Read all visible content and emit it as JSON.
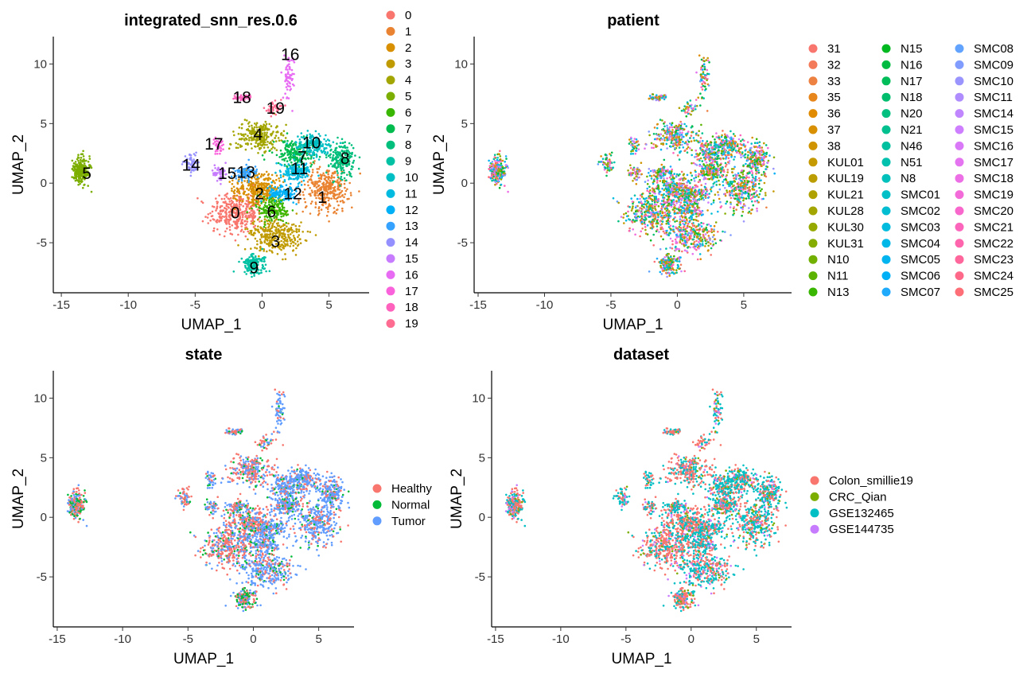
{
  "chart_data": [
    {
      "type": "scatter",
      "title": "integrated_snn_res.0.6",
      "xlabel": "UMAP_1",
      "ylabel": "UMAP_2",
      "xlim": [
        -15.5,
        8
      ],
      "ylim": [
        -9,
        12.5
      ],
      "xticks": [
        -15,
        -10,
        -5,
        0,
        5
      ],
      "yticks": [
        -5,
        0,
        5,
        10
      ],
      "legend_position": "right",
      "legend_title": "",
      "legend_columns": 1,
      "series": [
        {
          "name": "0",
          "color": "#F8766D",
          "center": [
            -2.0,
            -2.5
          ],
          "spread": [
            1.4,
            1.2
          ],
          "n": 360
        },
        {
          "name": "1",
          "color": "#EA8331",
          "center": [
            4.8,
            -0.5
          ],
          "spread": [
            1.2,
            1.4
          ],
          "n": 320
        },
        {
          "name": "2",
          "color": "#D89000",
          "center": [
            -0.2,
            -0.5
          ],
          "spread": [
            1.3,
            1.0
          ],
          "n": 320
        },
        {
          "name": "3",
          "color": "#C09B00",
          "center": [
            1.0,
            -4.3
          ],
          "spread": [
            1.5,
            1.0
          ],
          "n": 320
        },
        {
          "name": "4",
          "color": "#A3A500",
          "center": [
            -0.2,
            4.0
          ],
          "spread": [
            1.2,
            0.9
          ],
          "n": 260
        },
        {
          "name": "5",
          "color": "#7CAE00",
          "center": [
            -13.5,
            1.0
          ],
          "spread": [
            0.45,
            0.8
          ],
          "n": 260
        },
        {
          "name": "6",
          "color": "#39B600",
          "center": [
            0.8,
            -2.2
          ],
          "spread": [
            0.8,
            0.7
          ],
          "n": 180
        },
        {
          "name": "7",
          "color": "#00BB4E",
          "center": [
            2.5,
            2.5
          ],
          "spread": [
            1.0,
            0.8
          ],
          "n": 200
        },
        {
          "name": "8",
          "color": "#00BF7D",
          "center": [
            6.0,
            2.0
          ],
          "spread": [
            0.7,
            1.0
          ],
          "n": 200
        },
        {
          "name": "9",
          "color": "#00C1A3",
          "center": [
            -0.6,
            -6.8
          ],
          "spread": [
            0.6,
            0.6
          ],
          "n": 160
        },
        {
          "name": "10",
          "color": "#00BFC4",
          "center": [
            3.8,
            3.2
          ],
          "spread": [
            0.9,
            0.7
          ],
          "n": 180
        },
        {
          "name": "11",
          "color": "#00BAE0",
          "center": [
            2.5,
            1.0
          ],
          "spread": [
            0.8,
            0.6
          ],
          "n": 140
        },
        {
          "name": "12",
          "color": "#00B0F6",
          "center": [
            1.5,
            -0.8
          ],
          "spread": [
            0.8,
            0.5
          ],
          "n": 120
        },
        {
          "name": "13",
          "color": "#35A2FF",
          "center": [
            -1.3,
            0.8
          ],
          "spread": [
            0.6,
            0.5
          ],
          "n": 80
        },
        {
          "name": "14",
          "color": "#9590FF",
          "center": [
            -5.3,
            1.6
          ],
          "spread": [
            0.4,
            0.5
          ],
          "n": 60
        },
        {
          "name": "15",
          "color": "#C77CFF",
          "center": [
            -3.2,
            0.8
          ],
          "spread": [
            0.4,
            0.5
          ],
          "n": 50
        },
        {
          "name": "16",
          "color": "#E76BF3",
          "center": [
            2.0,
            9.0
          ],
          "spread": [
            0.25,
            1.3
          ],
          "n": 70
        },
        {
          "name": "17",
          "color": "#FA62DB",
          "center": [
            -3.3,
            3.3
          ],
          "spread": [
            0.4,
            0.5
          ],
          "n": 40
        },
        {
          "name": "18",
          "color": "#FF62BC",
          "center": [
            -1.5,
            7.2
          ],
          "spread": [
            0.6,
            0.2
          ],
          "n": 50
        },
        {
          "name": "19",
          "color": "#FF6C91",
          "center": [
            1.0,
            6.3
          ],
          "spread": [
            0.5,
            0.4
          ],
          "n": 40
        }
      ],
      "cluster_labels": [
        {
          "text": "0",
          "x": -2.0,
          "y": -2.5
        },
        {
          "text": "1",
          "x": 4.5,
          "y": -1.2
        },
        {
          "text": "2",
          "x": -0.2,
          "y": -0.9
        },
        {
          "text": "3",
          "x": 1.0,
          "y": -4.9
        },
        {
          "text": "4",
          "x": -0.3,
          "y": 4.1
        },
        {
          "text": "5",
          "x": -13.1,
          "y": 0.8
        },
        {
          "text": "6",
          "x": 0.7,
          "y": -2.4
        },
        {
          "text": "7",
          "x": 3.0,
          "y": 2.2
        },
        {
          "text": "8",
          "x": 6.2,
          "y": 2.1
        },
        {
          "text": "9",
          "x": -0.6,
          "y": -7.1
        },
        {
          "text": "10",
          "x": 3.7,
          "y": 3.4
        },
        {
          "text": "11",
          "x": 2.8,
          "y": 1.2
        },
        {
          "text": "12",
          "x": 2.3,
          "y": -0.9
        },
        {
          "text": "13",
          "x": -1.2,
          "y": 0.9
        },
        {
          "text": "14",
          "x": -5.3,
          "y": 1.5
        },
        {
          "text": "15",
          "x": -2.6,
          "y": 0.8
        },
        {
          "text": "16",
          "x": 2.1,
          "y": 10.8
        },
        {
          "text": "17",
          "x": -3.6,
          "y": 3.3
        },
        {
          "text": "18",
          "x": -1.5,
          "y": 7.2
        },
        {
          "text": "19",
          "x": 1.0,
          "y": 6.3
        }
      ]
    },
    {
      "type": "scatter",
      "title": "patient",
      "xlabel": "UMAP_1",
      "ylabel": "UMAP_2",
      "xlim": [
        -15.5,
        8
      ],
      "ylim": [
        -9,
        12.5
      ],
      "xticks": [
        -15,
        -10,
        -5,
        0,
        5
      ],
      "yticks": [
        -5,
        0,
        5,
        10
      ],
      "legend_position": "right",
      "legend_title": "",
      "legend_columns": 3,
      "series": [
        {
          "name": "31",
          "color": "#F8766D"
        },
        {
          "name": "32",
          "color": "#F37B59"
        },
        {
          "name": "33",
          "color": "#ED8141"
        },
        {
          "name": "35",
          "color": "#E7861B"
        },
        {
          "name": "36",
          "color": "#E08B00"
        },
        {
          "name": "37",
          "color": "#D89000"
        },
        {
          "name": "38",
          "color": "#CF9400"
        },
        {
          "name": "KUL01",
          "color": "#C59900"
        },
        {
          "name": "KUL19",
          "color": "#BB9D00"
        },
        {
          "name": "KUL21",
          "color": "#AFA100"
        },
        {
          "name": "KUL28",
          "color": "#A3A500"
        },
        {
          "name": "KUL30",
          "color": "#95A900"
        },
        {
          "name": "KUL31",
          "color": "#85AD00"
        },
        {
          "name": "N10",
          "color": "#72B000"
        },
        {
          "name": "N11",
          "color": "#5BB300"
        },
        {
          "name": "N13",
          "color": "#39B600"
        },
        {
          "name": "N15",
          "color": "#00B81F"
        },
        {
          "name": "N16",
          "color": "#00BA42"
        },
        {
          "name": "N17",
          "color": "#00BC59"
        },
        {
          "name": "N18",
          "color": "#00BD6D"
        },
        {
          "name": "N20",
          "color": "#00BF7F"
        },
        {
          "name": "N21",
          "color": "#00C08F"
        },
        {
          "name": "N46",
          "color": "#00C09F"
        },
        {
          "name": "N51",
          "color": "#00C1AD"
        },
        {
          "name": "N8",
          "color": "#00C0BB"
        },
        {
          "name": "SMC01",
          "color": "#00BFC7"
        },
        {
          "name": "SMC02",
          "color": "#00BDD2"
        },
        {
          "name": "SMC03",
          "color": "#00BBDD"
        },
        {
          "name": "SMC04",
          "color": "#00B8E7"
        },
        {
          "name": "SMC05",
          "color": "#00B4F0"
        },
        {
          "name": "SMC06",
          "color": "#00B0F6"
        },
        {
          "name": "SMC07",
          "color": "#1FAAFC"
        },
        {
          "name": "SMC08",
          "color": "#61A3FF"
        },
        {
          "name": "SMC09",
          "color": "#819CFF"
        },
        {
          "name": "SMC10",
          "color": "#9A94FF"
        },
        {
          "name": "SMC11",
          "color": "#AF8DFF"
        },
        {
          "name": "SMC14",
          "color": "#C086FF"
        },
        {
          "name": "SMC15",
          "color": "#CE7FFF"
        },
        {
          "name": "SMC16",
          "color": "#DA79F8"
        },
        {
          "name": "SMC17",
          "color": "#E474EF"
        },
        {
          "name": "SMC18",
          "color": "#EC6FE5"
        },
        {
          "name": "SMC19",
          "color": "#F36AD9"
        },
        {
          "name": "SMC20",
          "color": "#F867CB"
        },
        {
          "name": "SMC21",
          "color": "#FC65BC"
        },
        {
          "name": "SMC22",
          "color": "#FE65AC"
        },
        {
          "name": "SMC23",
          "color": "#FF669B"
        },
        {
          "name": "SMC24",
          "color": "#FF6989"
        },
        {
          "name": "SMC25",
          "color": "#FD6E76"
        }
      ]
    },
    {
      "type": "scatter",
      "title": "state",
      "xlabel": "UMAP_1",
      "ylabel": "UMAP_2",
      "xlim": [
        -15.5,
        8
      ],
      "ylim": [
        -9,
        12.5
      ],
      "xticks": [
        -15,
        -10,
        -5,
        0,
        5
      ],
      "yticks": [
        -5,
        0,
        5,
        10
      ],
      "legend_position": "right",
      "legend_title": "",
      "legend_columns": 1,
      "series": [
        {
          "name": "Healthy",
          "color": "#F8766D"
        },
        {
          "name": "Normal",
          "color": "#00BA38"
        },
        {
          "name": "Tumor",
          "color": "#619CFF"
        }
      ]
    },
    {
      "type": "scatter",
      "title": "dataset",
      "xlabel": "UMAP_1",
      "ylabel": "UMAP_2",
      "xlim": [
        -15.5,
        8
      ],
      "ylim": [
        -9,
        12.5
      ],
      "xticks": [
        -15,
        -10,
        -5,
        0,
        5
      ],
      "yticks": [
        -5,
        0,
        5,
        10
      ],
      "legend_position": "right",
      "legend_title": "",
      "legend_columns": 1,
      "series": [
        {
          "name": "Colon_smillie19",
          "color": "#F8766D"
        },
        {
          "name": "CRC_Qian",
          "color": "#7CAE00"
        },
        {
          "name": "GSE132465",
          "color": "#00BFC4"
        },
        {
          "name": "GSE144735",
          "color": "#C77CFF"
        }
      ]
    }
  ]
}
